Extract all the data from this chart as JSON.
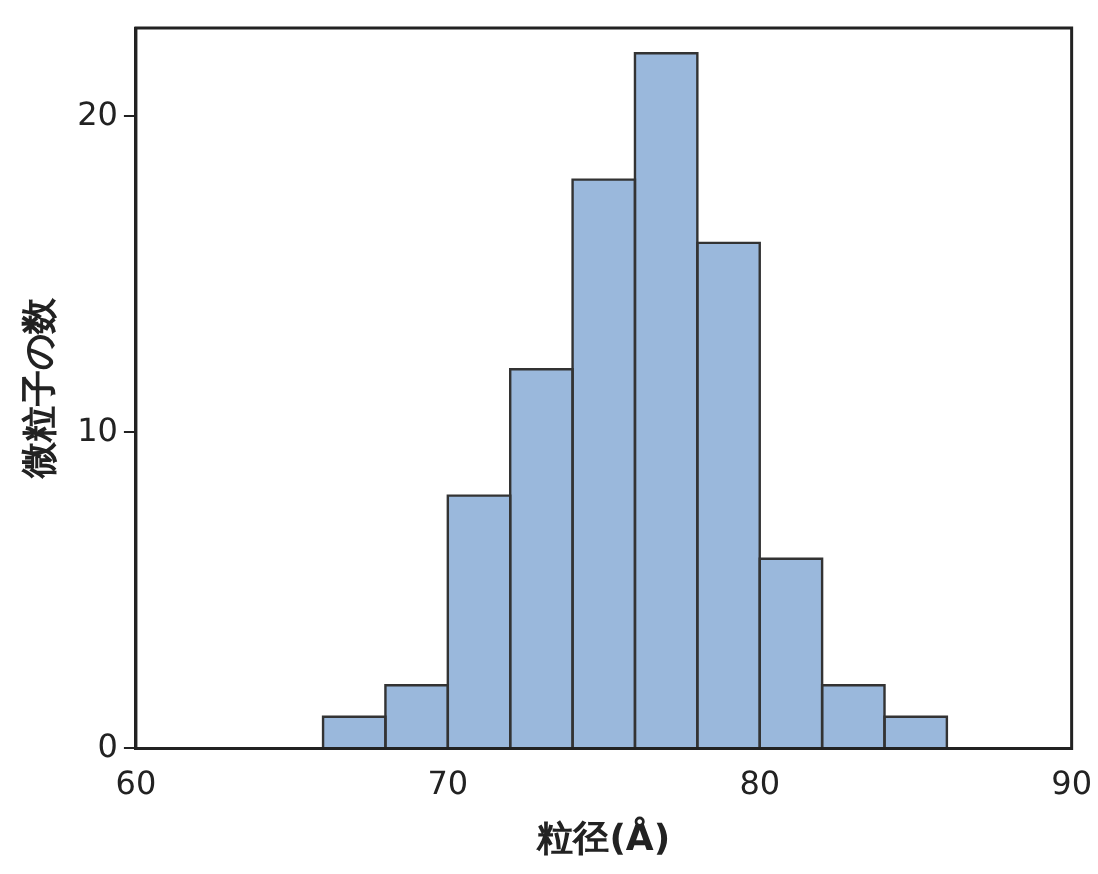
{
  "chart_data": {
    "type": "histogram",
    "xlabel": "粒径(Å)",
    "ylabel": "微粒子の数",
    "bins": [
      66,
      68,
      70,
      72,
      74,
      76,
      78,
      80,
      82,
      84,
      86
    ],
    "values": [
      1,
      2,
      8,
      12,
      18,
      22,
      16,
      6,
      2,
      1
    ],
    "color": "#9ab8dc",
    "xlim": [
      60,
      90
    ],
    "xticks": [
      60,
      70,
      80,
      90
    ],
    "ylim": [
      0,
      22.8
    ],
    "yticks": [
      0,
      10,
      20
    ],
    "grid": false,
    "legend": false
  }
}
